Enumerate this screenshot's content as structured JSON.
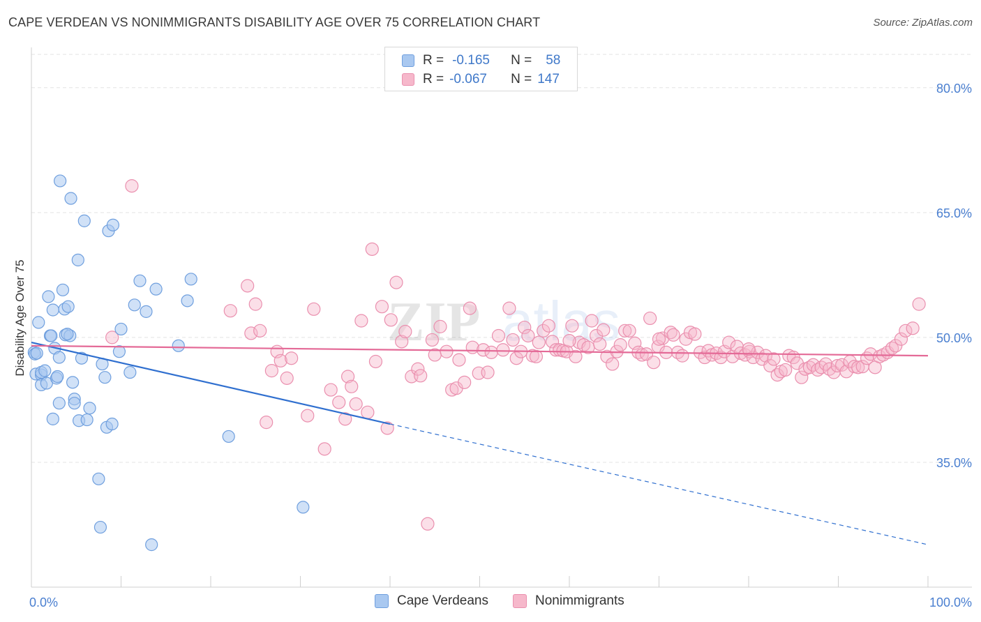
{
  "header": {
    "title": "CAPE VERDEAN VS NONIMMIGRANTS DISABILITY AGE OVER 75 CORRELATION CHART",
    "source": "Source: ZipAtlas.com"
  },
  "legend": {
    "rows": [
      {
        "r_label": "R =",
        "r_value": "-0.165",
        "n_label": "N =",
        "n_value": "58",
        "color": "#a9c8f0"
      },
      {
        "r_label": "R =",
        "r_value": "-0.067",
        "n_label": "N =",
        "n_value": "147",
        "color": "#f6b8cb"
      }
    ]
  },
  "colors": {
    "blue_fill": "#a9c8f0",
    "blue_stroke": "#6f9fde",
    "blue_line": "#2f6fcf",
    "pink_fill": "#f6b8cb",
    "pink_stroke": "#ea8fae",
    "pink_line": "#e46a97",
    "tick_text": "#4a7fd0",
    "grid": "#e3e3e3"
  },
  "chart_data": {
    "type": "scatter",
    "title": "CAPE VERDEAN VS NONIMMIGRANTS DISABILITY AGE OVER 75 CORRELATION CHART",
    "xlabel": "",
    "ylabel": "Disability Age Over 75",
    "xlim": [
      0,
      100
    ],
    "ylim": [
      20,
      84
    ],
    "x_tick_labels": [
      "0.0%",
      "100.0%"
    ],
    "y_ticks": [
      35,
      50,
      65,
      80
    ],
    "y_tick_labels": [
      "35.0%",
      "50.0%",
      "65.0%",
      "80.0%"
    ],
    "grid": true,
    "legend_position": "top-center and bottom",
    "series": [
      {
        "name": "Cape Verdeans",
        "r": -0.165,
        "n": 58,
        "trend": {
          "x0": 0,
          "y0": 49.4,
          "x1": 40,
          "y1": 39.6,
          "dashed_to_x": 100,
          "dashed_to_y": 25.1
        },
        "points": [
          [
            0.3,
            48.2
          ],
          [
            0.4,
            48.0
          ],
          [
            0.5,
            45.6
          ],
          [
            0.8,
            51.8
          ],
          [
            1.1,
            45.5
          ],
          [
            1.1,
            44.3
          ],
          [
            1.1,
            45.8
          ],
          [
            1.5,
            46.0
          ],
          [
            1.7,
            44.5
          ],
          [
            1.9,
            54.9
          ],
          [
            2.1,
            50.2
          ],
          [
            2.2,
            50.2
          ],
          [
            2.4,
            53.3
          ],
          [
            2.4,
            40.2
          ],
          [
            2.6,
            48.7
          ],
          [
            2.8,
            45.1
          ],
          [
            3.1,
            47.6
          ],
          [
            3.1,
            42.1
          ],
          [
            3.2,
            68.8
          ],
          [
            3.5,
            55.7
          ],
          [
            3.7,
            53.4
          ],
          [
            3.8,
            50.3
          ],
          [
            4.1,
            53.7
          ],
          [
            4.3,
            50.2
          ],
          [
            4.4,
            66.7
          ],
          [
            4.6,
            44.6
          ],
          [
            4.8,
            42.6
          ],
          [
            4.8,
            42.1
          ],
          [
            5.2,
            59.3
          ],
          [
            5.3,
            40.0
          ],
          [
            5.6,
            47.5
          ],
          [
            5.9,
            64.0
          ],
          [
            6.2,
            40.1
          ],
          [
            6.5,
            41.5
          ],
          [
            7.5,
            33.0
          ],
          [
            7.7,
            27.2
          ],
          [
            7.9,
            46.8
          ],
          [
            8.2,
            45.2
          ],
          [
            8.4,
            39.2
          ],
          [
            8.6,
            62.8
          ],
          [
            9.0,
            39.6
          ],
          [
            9.1,
            63.5
          ],
          [
            9.8,
            48.3
          ],
          [
            10.0,
            51.0
          ],
          [
            11.0,
            45.8
          ],
          [
            11.5,
            53.9
          ],
          [
            12.1,
            56.8
          ],
          [
            12.8,
            53.1
          ],
          [
            13.4,
            25.1
          ],
          [
            13.9,
            55.8
          ],
          [
            16.4,
            49.0
          ],
          [
            17.4,
            54.4
          ],
          [
            17.8,
            57.0
          ],
          [
            22.0,
            38.1
          ],
          [
            30.3,
            29.6
          ],
          [
            0.6,
            48.1
          ],
          [
            2.9,
            45.3
          ],
          [
            4.0,
            50.4
          ]
        ]
      },
      {
        "name": "Nonimmigrants",
        "r": -0.067,
        "n": 147,
        "trend": {
          "x0": 0,
          "y0": 49.0,
          "x1": 100,
          "y1": 47.8
        },
        "points": [
          [
            9.0,
            50.0
          ],
          [
            11.2,
            68.2
          ],
          [
            22.2,
            53.2
          ],
          [
            24.1,
            56.2
          ],
          [
            24.5,
            50.5
          ],
          [
            25.0,
            54.0
          ],
          [
            25.5,
            50.8
          ],
          [
            26.2,
            39.8
          ],
          [
            26.8,
            46.0
          ],
          [
            27.4,
            48.3
          ],
          [
            27.8,
            47.2
          ],
          [
            28.5,
            45.1
          ],
          [
            29.0,
            47.5
          ],
          [
            30.8,
            40.6
          ],
          [
            31.5,
            53.4
          ],
          [
            32.7,
            36.6
          ],
          [
            33.4,
            43.7
          ],
          [
            34.3,
            42.2
          ],
          [
            35.0,
            40.2
          ],
          [
            35.3,
            45.3
          ],
          [
            35.7,
            44.1
          ],
          [
            36.2,
            42.0
          ],
          [
            36.8,
            52.0
          ],
          [
            37.5,
            41.0
          ],
          [
            38.0,
            60.6
          ],
          [
            38.4,
            47.1
          ],
          [
            39.1,
            53.7
          ],
          [
            39.7,
            39.1
          ],
          [
            40.1,
            52.1
          ],
          [
            40.7,
            56.6
          ],
          [
            41.3,
            49.5
          ],
          [
            41.7,
            50.7
          ],
          [
            42.4,
            45.3
          ],
          [
            43.1,
            46.2
          ],
          [
            43.4,
            45.4
          ],
          [
            44.2,
            27.6
          ],
          [
            44.7,
            49.7
          ],
          [
            45.0,
            47.9
          ],
          [
            45.6,
            51.3
          ],
          [
            46.3,
            48.3
          ],
          [
            46.9,
            43.7
          ],
          [
            47.4,
            43.9
          ],
          [
            47.7,
            47.3
          ],
          [
            48.3,
            44.6
          ],
          [
            48.9,
            53.5
          ],
          [
            49.2,
            48.8
          ],
          [
            49.9,
            45.7
          ],
          [
            50.4,
            48.5
          ],
          [
            50.9,
            45.8
          ],
          [
            51.3,
            48.2
          ],
          [
            52.1,
            50.2
          ],
          [
            52.6,
            48.5
          ],
          [
            53.3,
            53.5
          ],
          [
            53.7,
            49.7
          ],
          [
            54.1,
            47.5
          ],
          [
            54.6,
            48.3
          ],
          [
            55.0,
            51.2
          ],
          [
            55.4,
            50.2
          ],
          [
            55.9,
            47.8
          ],
          [
            56.3,
            47.7
          ],
          [
            56.6,
            49.4
          ],
          [
            57.1,
            50.8
          ],
          [
            57.7,
            51.4
          ],
          [
            58.1,
            49.5
          ],
          [
            58.5,
            48.5
          ],
          [
            58.9,
            48.5
          ],
          [
            59.3,
            48.4
          ],
          [
            59.7,
            48.3
          ],
          [
            60.3,
            51.4
          ],
          [
            60.7,
            47.7
          ],
          [
            61.1,
            49.4
          ],
          [
            61.6,
            49.1
          ],
          [
            62.1,
            48.8
          ],
          [
            62.5,
            52.0
          ],
          [
            63.0,
            50.2
          ],
          [
            63.4,
            49.2
          ],
          [
            63.8,
            50.9
          ],
          [
            64.2,
            47.7
          ],
          [
            64.8,
            46.8
          ],
          [
            65.3,
            48.3
          ],
          [
            65.7,
            49.1
          ],
          [
            66.2,
            50.8
          ],
          [
            66.7,
            50.8
          ],
          [
            67.3,
            49.3
          ],
          [
            67.7,
            48.2
          ],
          [
            68.1,
            47.9
          ],
          [
            68.6,
            48.0
          ],
          [
            69.0,
            52.3
          ],
          [
            69.4,
            47.0
          ],
          [
            69.9,
            48.9
          ],
          [
            70.4,
            49.9
          ],
          [
            70.8,
            48.2
          ],
          [
            71.3,
            50.6
          ],
          [
            71.6,
            50.3
          ],
          [
            72.1,
            48.2
          ],
          [
            72.6,
            47.8
          ],
          [
            73.0,
            49.8
          ],
          [
            73.5,
            50.6
          ],
          [
            74.0,
            50.4
          ],
          [
            74.6,
            48.2
          ],
          [
            75.1,
            47.6
          ],
          [
            75.5,
            48.4
          ],
          [
            75.9,
            47.9
          ],
          [
            76.4,
            48.1
          ],
          [
            76.9,
            47.6
          ],
          [
            77.3,
            48.3
          ],
          [
            77.8,
            49.4
          ],
          [
            78.2,
            47.7
          ],
          [
            78.7,
            48.9
          ],
          [
            79.1,
            48.1
          ],
          [
            79.6,
            47.9
          ],
          [
            80.1,
            48.3
          ],
          [
            80.5,
            47.6
          ],
          [
            81.0,
            48.2
          ],
          [
            81.5,
            47.4
          ],
          [
            81.9,
            47.8
          ],
          [
            82.4,
            46.6
          ],
          [
            82.8,
            47.4
          ],
          [
            83.2,
            45.5
          ],
          [
            83.6,
            45.9
          ],
          [
            84.1,
            46.1
          ],
          [
            84.5,
            47.8
          ],
          [
            85.0,
            47.6
          ],
          [
            85.4,
            46.9
          ],
          [
            85.9,
            45.2
          ],
          [
            86.3,
            46.2
          ],
          [
            86.8,
            46.4
          ],
          [
            87.2,
            46.7
          ],
          [
            87.7,
            46.1
          ],
          [
            88.1,
            46.4
          ],
          [
            88.6,
            46.8
          ],
          [
            89.0,
            46.2
          ],
          [
            89.5,
            45.8
          ],
          [
            89.9,
            46.6
          ],
          [
            90.4,
            46.7
          ],
          [
            90.9,
            45.9
          ],
          [
            91.3,
            47.1
          ],
          [
            91.8,
            46.5
          ],
          [
            92.2,
            46.4
          ],
          [
            92.7,
            46.5
          ],
          [
            93.2,
            47.5
          ],
          [
            93.6,
            48.0
          ],
          [
            94.1,
            46.4
          ],
          [
            94.6,
            47.7
          ],
          [
            95.0,
            47.9
          ],
          [
            95.5,
            48.2
          ],
          [
            96.0,
            48.7
          ],
          [
            96.4,
            49.0
          ],
          [
            97.0,
            49.8
          ],
          [
            97.5,
            50.8
          ],
          [
            98.3,
            51.1
          ],
          [
            99.0,
            54.0
          ],
          [
            60.0,
            49.6
          ],
          [
            70.0,
            49.8
          ],
          [
            80.0,
            48.6
          ]
        ]
      }
    ]
  }
}
